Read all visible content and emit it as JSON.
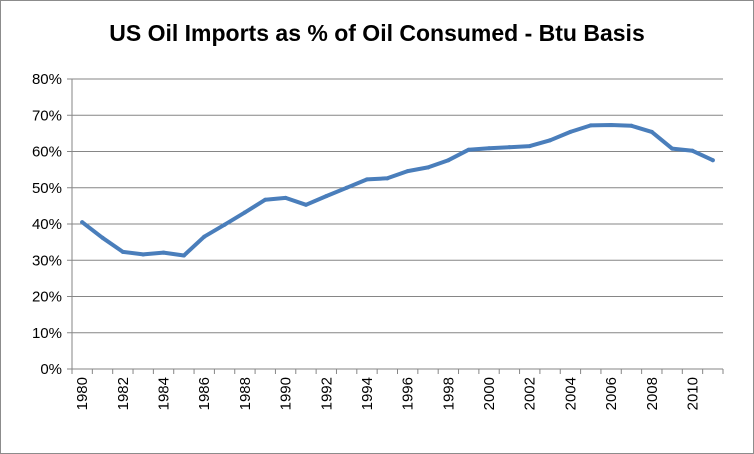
{
  "chart_data": {
    "type": "line",
    "title": "US Oil Imports as % of Oil Consumed - Btu Basis",
    "xlabel": "",
    "ylabel": "",
    "x": [
      1980,
      1981,
      1982,
      1983,
      1984,
      1985,
      1986,
      1987,
      1988,
      1989,
      1990,
      1991,
      1992,
      1993,
      1994,
      1995,
      1996,
      1997,
      1998,
      1999,
      2000,
      2001,
      2002,
      2003,
      2004,
      2005,
      2006,
      2007,
      2008,
      2009,
      2010,
      2011
    ],
    "x_tick_labels": [
      "1980",
      "1982",
      "1984",
      "1986",
      "1988",
      "1990",
      "1992",
      "1994",
      "1996",
      "1998",
      "2000",
      "2002",
      "2004",
      "2006",
      "2008",
      "2010"
    ],
    "y_tick_labels": [
      "0%",
      "10%",
      "20%",
      "30%",
      "40%",
      "50%",
      "60%",
      "70%",
      "80%"
    ],
    "ylim": [
      0,
      80
    ],
    "grid": true,
    "series": [
      {
        "values": [
          40.5,
          36.2,
          32.3,
          31.6,
          32.1,
          31.3,
          36.5,
          39.8,
          43.2,
          46.7,
          47.2,
          45.3,
          47.7,
          50.0,
          52.3,
          52.6,
          54.6,
          55.6,
          57.6,
          60.5,
          60.9,
          61.2,
          61.5,
          63.1,
          65.4,
          67.2,
          67.3,
          67.1,
          65.4,
          60.8,
          60.2,
          57.6
        ]
      }
    ],
    "colors": {
      "line": "#4a7ebb",
      "grid": "#868686",
      "axis": "#868686"
    }
  }
}
